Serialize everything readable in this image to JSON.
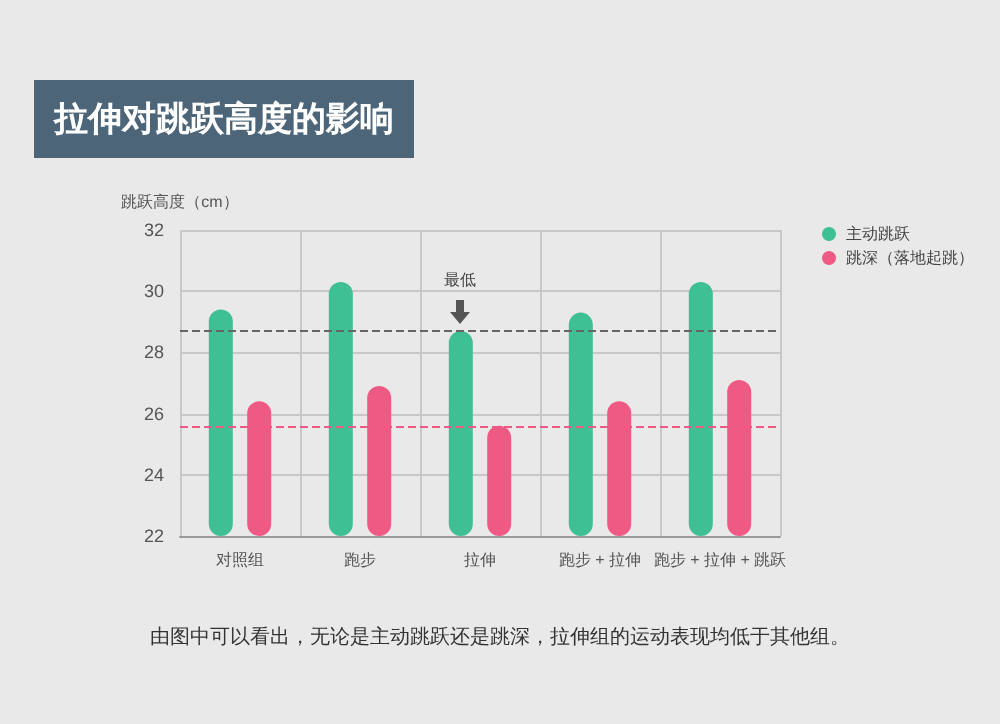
{
  "chart_data": {
    "type": "bar",
    "title": "拉伸对跳跃高度的影响",
    "ylabel": "跳跃高度（cm）",
    "categories": [
      "对照组",
      "跑步",
      "拉伸",
      "跑步 + 拉伸",
      "跑步 + 拉伸 + 跳跃"
    ],
    "series": [
      {
        "name": "主动跳跃",
        "color": "#3fbf94",
        "values": [
          29.4,
          30.3,
          28.7,
          29.3,
          30.3
        ]
      },
      {
        "name": "跳深（落地起跳）",
        "color": "#ef5a84",
        "values": [
          26.4,
          26.9,
          25.6,
          26.4,
          27.1
        ]
      }
    ],
    "ylim": [
      22,
      32
    ],
    "yticks": [
      22,
      24,
      26,
      28,
      30,
      32
    ],
    "grid": true,
    "legend": "top right",
    "ref_lines": [
      {
        "axis": "y",
        "value": 28.7,
        "color": "#666666",
        "line_style": "dashed"
      },
      {
        "axis": "y",
        "value": 25.6,
        "color": "#ef5a84",
        "line_style": "dashed"
      }
    ],
    "annotations": [
      "最低",
      "由图中可以看出，无论是主动跳跃还是跳深，拉伸组的运动表现均低于其他组。"
    ]
  }
}
